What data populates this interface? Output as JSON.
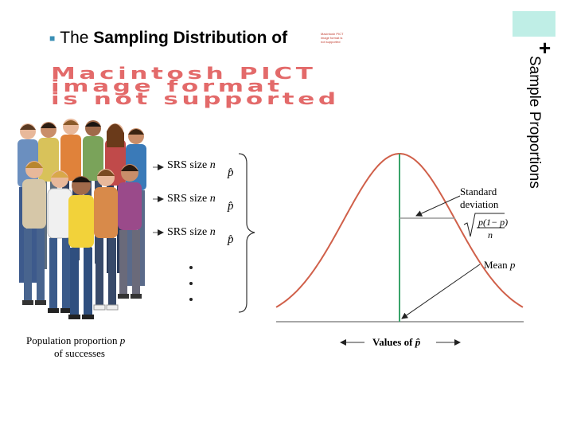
{
  "title": {
    "bullet": "■",
    "lead": "The",
    "text": "Sampling Distribution of"
  },
  "placeholder_small": "Macintosh PICT image format is not supported",
  "side_title": {
    "plus": "+",
    "text": "Sample Proportions"
  },
  "pict_placeholder": {
    "line1": "Macintosh PICT",
    "line2": "image format",
    "line3": "is not supported"
  },
  "samples": [
    {
      "label": "SRS size",
      "var": "n",
      "stat": "p̂"
    },
    {
      "label": "SRS size",
      "var": "n",
      "stat": "p̂"
    },
    {
      "label": "SRS size",
      "var": "n",
      "stat": "p̂"
    }
  ],
  "population": {
    "line1": "Population proportion",
    "var": "p",
    "line2": "of successes"
  },
  "curve_labels": {
    "sd_line1": "Standard",
    "sd_line2": "deviation",
    "sd_num": "p(1− p)",
    "sd_den": "n",
    "mean_label": "Mean",
    "mean_var": "p",
    "axis_label": "Values of",
    "axis_var": "p̂"
  },
  "colors": {
    "curve": "#d0604a",
    "mean_line": "#3aa36a",
    "sd_line": "#9a9a9a",
    "axis": "#8a8a8a",
    "accent": "#bfeee6"
  }
}
